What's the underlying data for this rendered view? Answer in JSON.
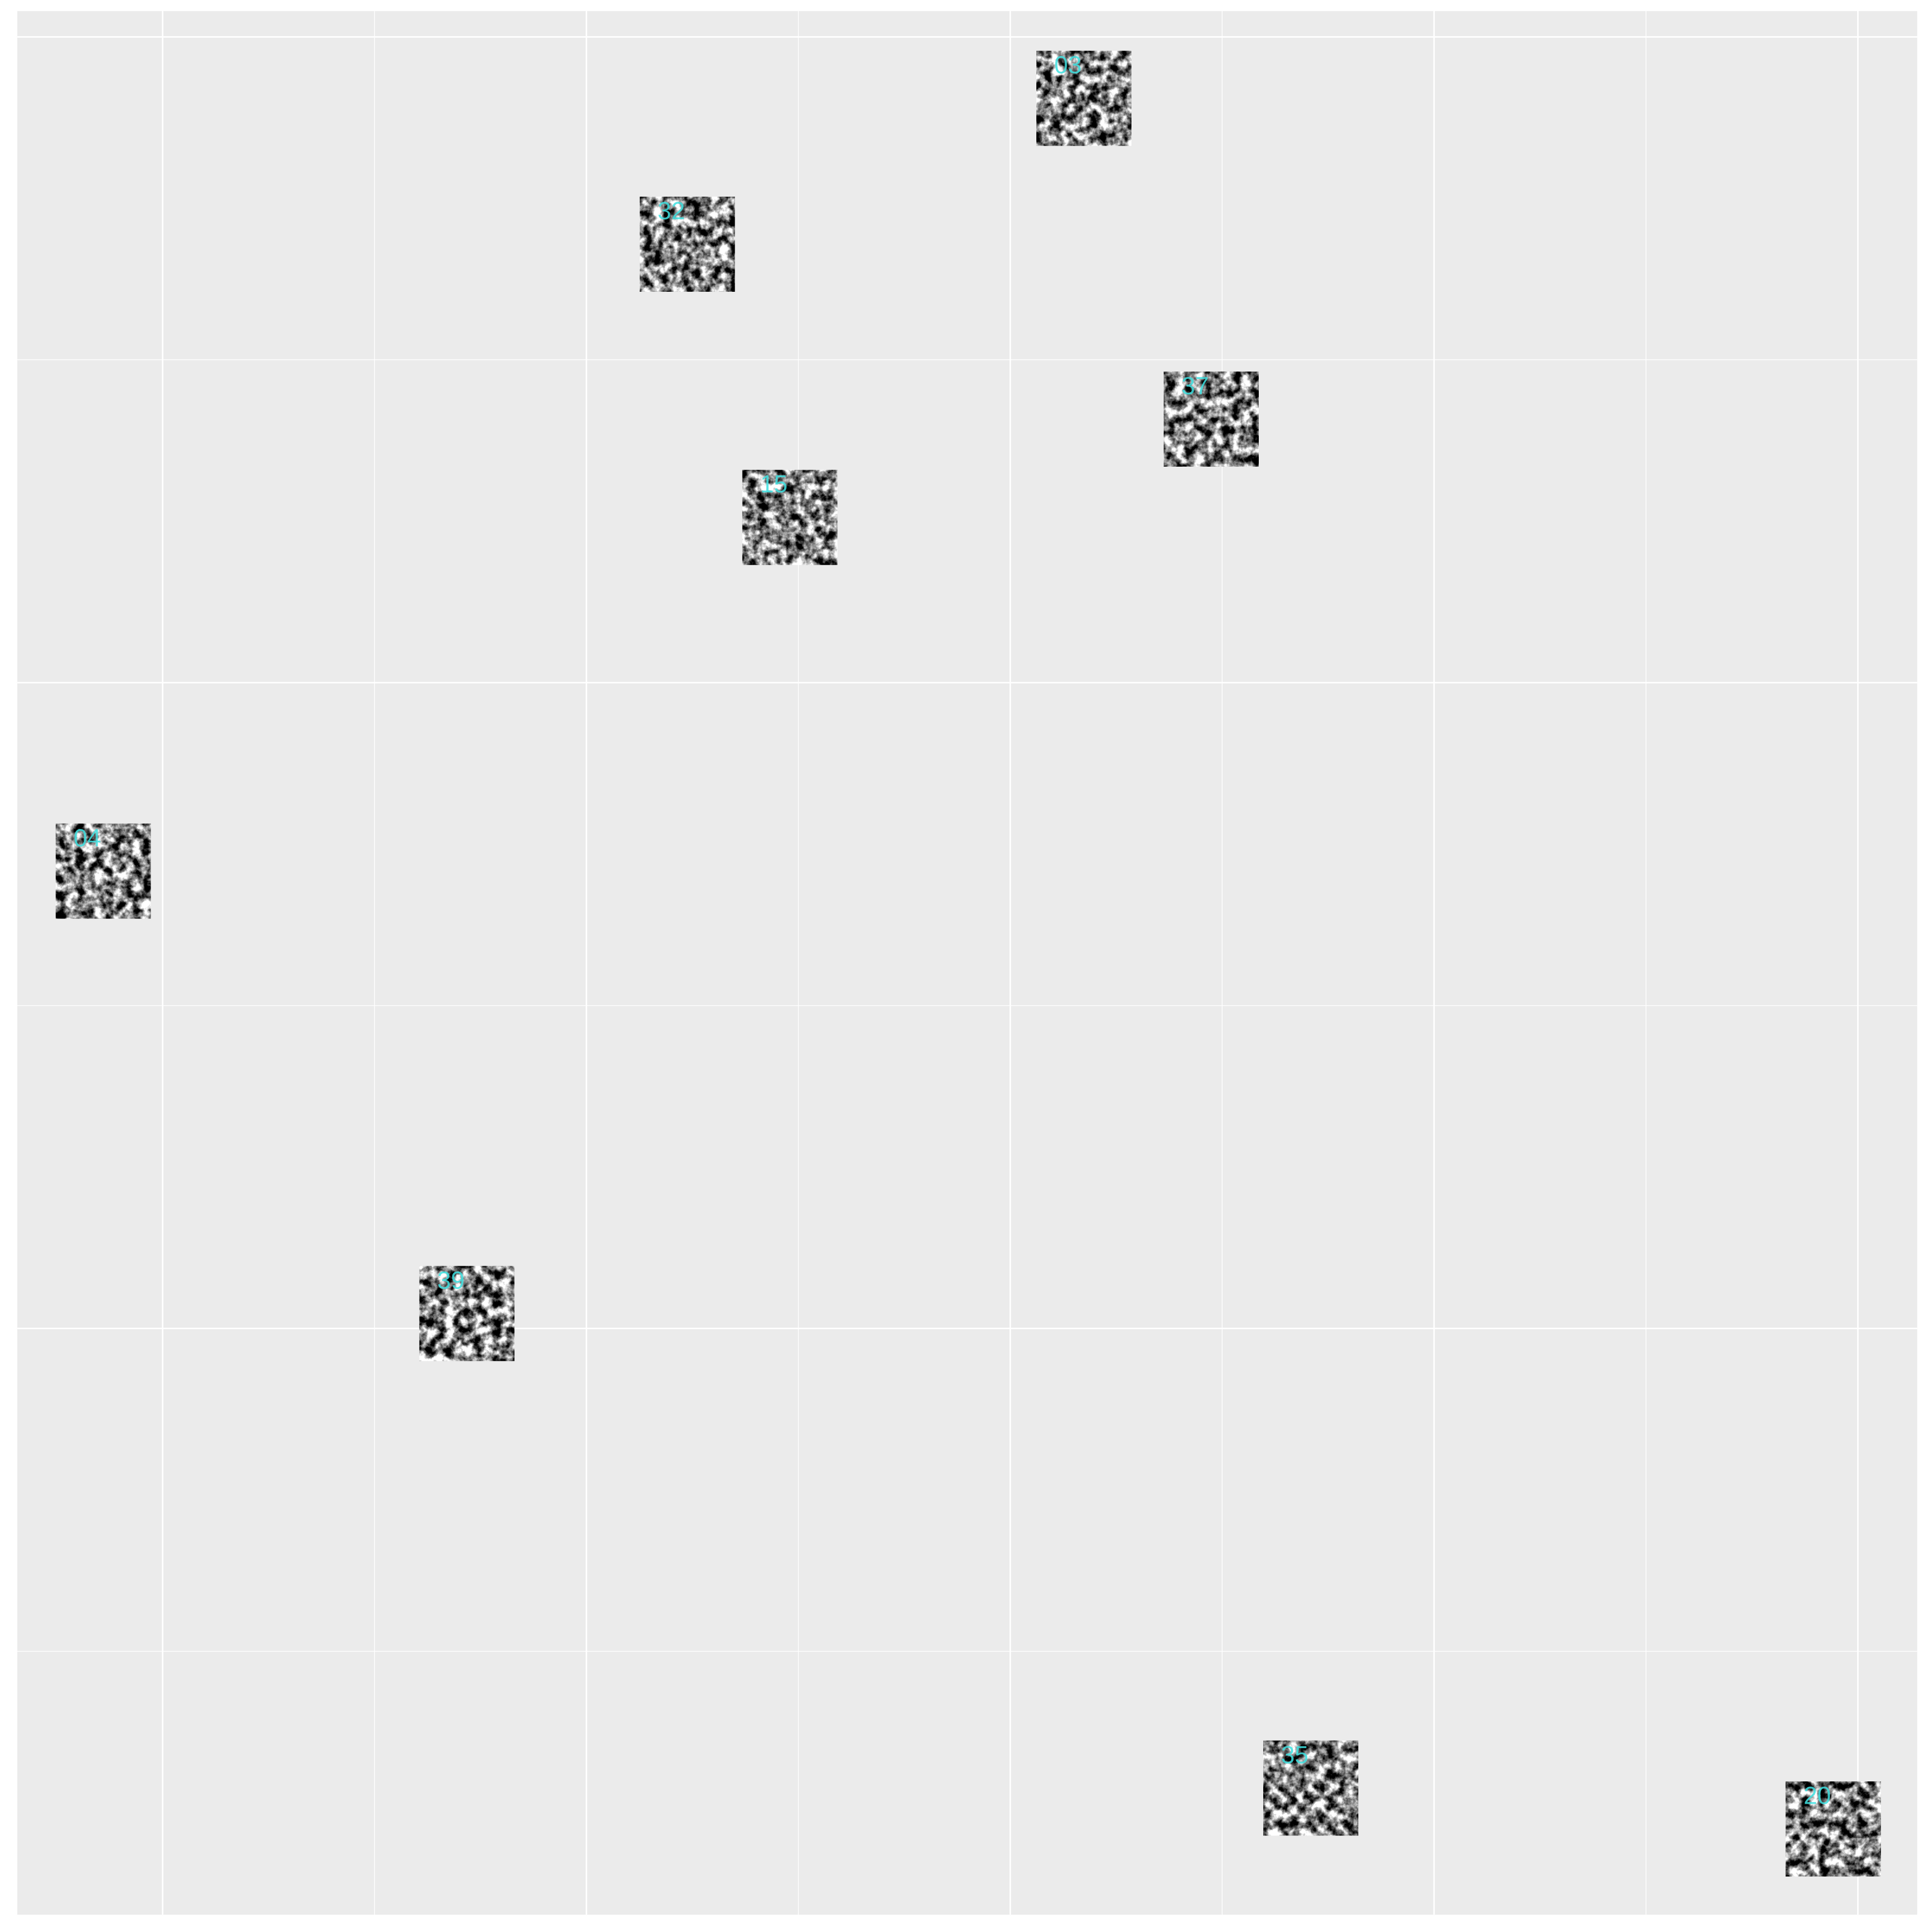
{
  "chart_data": {
    "type": "scatter",
    "labels": [
      "03",
      "32",
      "37",
      "15",
      "04",
      "39",
      "35",
      "20"
    ],
    "x": [
      2.174,
      1.238,
      2.474,
      1.48,
      -0.14,
      0.718,
      2.709,
      3.942
    ],
    "values": [
      1.905,
      1.679,
      1.408,
      1.256,
      0.708,
      0.023,
      -0.712,
      -0.775
    ],
    "label_color": "#40e0e0",
    "xlim": [
      -0.343,
      4.14
    ],
    "ylim": [
      -0.908,
      2.04
    ],
    "xticks": [
      0,
      1,
      2,
      3,
      4
    ],
    "yticks": [
      0,
      1,
      2
    ],
    "xminor": [
      0.5,
      1.5,
      2.5,
      3.5
    ],
    "yminor": [
      -0.5,
      0.5,
      1.5
    ],
    "grid": true
  }
}
